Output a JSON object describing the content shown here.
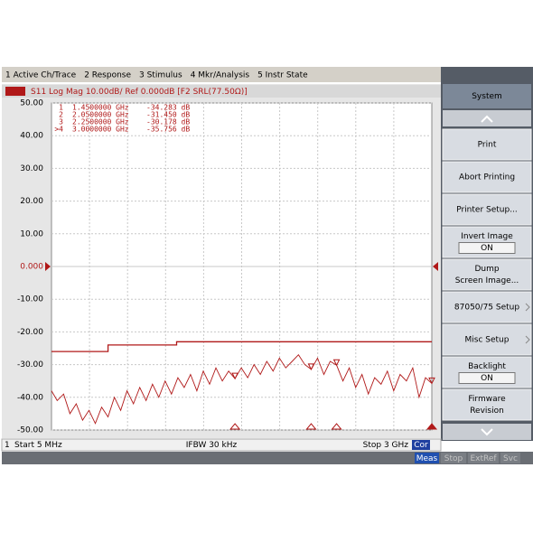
{
  "menu": [
    "1 Active Ch/Trace",
    "2 Response",
    "3 Stimulus",
    "4 Mkr/Analysis",
    "5 Instr State"
  ],
  "trace_header": "S11 Log Mag 10.00dB/ Ref 0.000dB [F2 SRL(77.50Ω)]",
  "chart_data": {
    "type": "line",
    "xlim": [
      0.005,
      3.0
    ],
    "ylim": [
      -50,
      50
    ],
    "yticks": [
      {
        "value": 50,
        "label": "50.00"
      },
      {
        "value": 40,
        "label": "40.00"
      },
      {
        "value": 30,
        "label": "30.00"
      },
      {
        "value": 20,
        "label": "20.00"
      },
      {
        "value": 10,
        "label": "10.00"
      },
      {
        "value": 0,
        "label": "0.000"
      },
      {
        "value": -10,
        "label": "-10.00"
      },
      {
        "value": -20,
        "label": "-20.00"
      },
      {
        "value": -30,
        "label": "-30.00"
      },
      {
        "value": -40,
        "label": "-40.00"
      },
      {
        "value": -50,
        "label": "-50.00"
      }
    ],
    "reference_value": 0,
    "grid": true,
    "trace": {
      "color": "#b01818",
      "x": [
        0.005,
        0.05,
        0.1,
        0.15,
        0.2,
        0.25,
        0.3,
        0.35,
        0.4,
        0.45,
        0.5,
        0.55,
        0.6,
        0.65,
        0.7,
        0.75,
        0.8,
        0.85,
        0.9,
        0.95,
        1.0,
        1.05,
        1.1,
        1.15,
        1.2,
        1.25,
        1.3,
        1.35,
        1.4,
        1.45,
        1.5,
        1.55,
        1.6,
        1.65,
        1.7,
        1.75,
        1.8,
        1.85,
        1.9,
        1.95,
        2.0,
        2.05,
        2.1,
        2.15,
        2.2,
        2.25,
        2.3,
        2.35,
        2.4,
        2.45,
        2.5,
        2.55,
        2.6,
        2.65,
        2.7,
        2.75,
        2.8,
        2.85,
        2.9,
        2.95,
        3.0
      ],
      "values": [
        -38,
        -41,
        -39,
        -45,
        -42,
        -47,
        -44,
        -48,
        -43,
        -46,
        -40,
        -44,
        -38,
        -42,
        -37,
        -41,
        -36,
        -40,
        -35,
        -39,
        -34,
        -37,
        -33,
        -38,
        -32,
        -36,
        -31,
        -35,
        -32,
        -34.283,
        -31,
        -34,
        -30,
        -33,
        -29,
        -32,
        -28,
        -31,
        -29,
        -27,
        -30,
        -31.45,
        -28,
        -33,
        -29,
        -30.178,
        -35,
        -31,
        -37,
        -33,
        -39,
        -34,
        -36,
        -32,
        -38,
        -33,
        -35,
        -31,
        -40,
        -34,
        -35.756
      ]
    },
    "limit_line": {
      "color": "#b01818",
      "x": [
        0.005,
        0.45,
        0.45,
        0.99,
        0.99,
        3.0
      ],
      "values": [
        -26,
        -26,
        -24,
        -24,
        -23,
        -23
      ]
    },
    "markers": [
      {
        "id": "1",
        "x": 1.45,
        "x_label": "1.4500000 GHz",
        "value": -34.283,
        "value_label": "-34.283 dB"
      },
      {
        "id": "2",
        "x": 2.05,
        "x_label": "2.0500000 GHz",
        "value": -31.45,
        "value_label": "-31.450 dB"
      },
      {
        "id": "3",
        "x": 2.25,
        "x_label": "2.2500000 GHz",
        "value": -30.178,
        "value_label": "-30.178 dB"
      },
      {
        "id": ">4",
        "x": 3.0,
        "x_label": "3.0000000 GHz",
        "value": -35.756,
        "value_label": "-35.756 dB"
      }
    ]
  },
  "status": {
    "channel": "1",
    "start": "Start 5 MHz",
    "ifbw": "IFBW 30 kHz",
    "stop": "Stop 3 GHz",
    "cor": "Cor"
  },
  "softkeys": {
    "title": "System",
    "buttons": [
      {
        "lines": [
          "Print"
        ]
      },
      {
        "lines": [
          "Abort Printing"
        ]
      },
      {
        "lines": [
          "Printer Setup..."
        ]
      },
      {
        "lines": [
          "Invert Image"
        ],
        "state": "ON"
      },
      {
        "lines": [
          "Dump",
          "Screen Image..."
        ]
      },
      {
        "lines": [
          "87050/75 Setup"
        ]
      },
      {
        "lines": [
          "Misc Setup"
        ]
      },
      {
        "lines": [
          "Backlight"
        ],
        "state": "ON"
      },
      {
        "lines": [
          "Firmware",
          "Revision"
        ]
      }
    ]
  },
  "status_bar": [
    "Meas",
    "Stop",
    "ExtRef",
    "Svc"
  ]
}
